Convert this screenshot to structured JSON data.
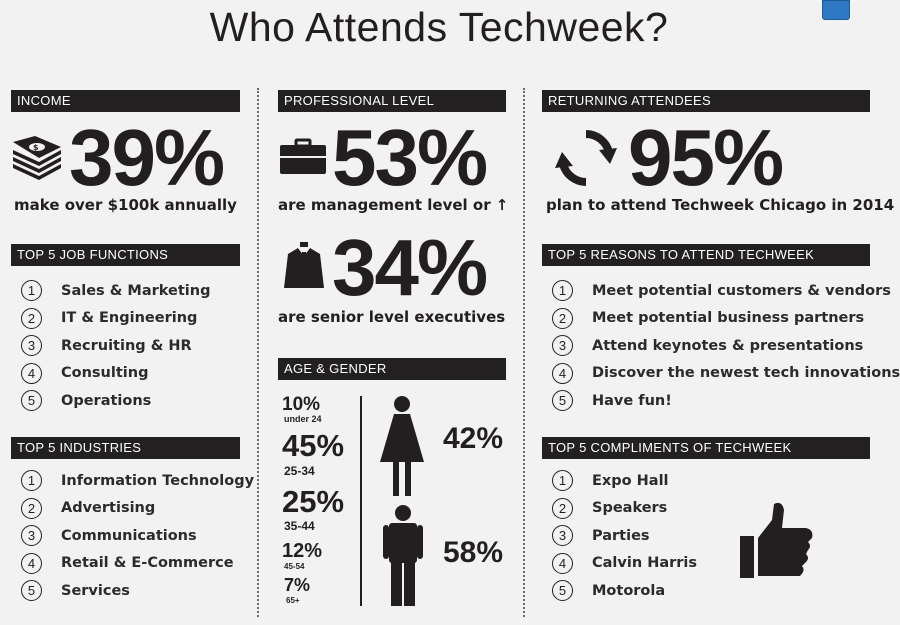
{
  "title": "Who Attends Techweek?",
  "income": {
    "header": "INCOME",
    "stat": "39%",
    "caption": "make over $100k annually"
  },
  "job_functions": {
    "header": "TOP 5 JOB FUNCTIONS",
    "items": [
      {
        "num": "1",
        "label": "Sales & Marketing"
      },
      {
        "num": "2",
        "label": "IT & Engineering"
      },
      {
        "num": "3",
        "label": "Recruiting & HR"
      },
      {
        "num": "4",
        "label": "Consulting"
      },
      {
        "num": "5",
        "label": "Operations"
      }
    ]
  },
  "industries": {
    "header": "TOP 5 INDUSTRIES",
    "items": [
      {
        "num": "1",
        "label": "Information Technology"
      },
      {
        "num": "2",
        "label": "Advertising"
      },
      {
        "num": "3",
        "label": "Communications"
      },
      {
        "num": "4",
        "label": "Retail & E-Commerce"
      },
      {
        "num": "5",
        "label": "Services"
      }
    ]
  },
  "professional": {
    "header": "PROFESSIONAL LEVEL",
    "stat1": "53%",
    "caption1": "are management level or ↑",
    "stat2": "34%",
    "caption2": "are senior level executives"
  },
  "age_gender": {
    "header": "AGE & GENDER",
    "ages": [
      {
        "pct": "10%",
        "range": "under 24"
      },
      {
        "pct": "45%",
        "range": "25-34"
      },
      {
        "pct": "25%",
        "range": "35-44"
      },
      {
        "pct": "12%",
        "range": "45-54"
      },
      {
        "pct": "7%",
        "range": "65+"
      }
    ],
    "female_pct": "42%",
    "male_pct": "58%"
  },
  "returning": {
    "header": "RETURNING ATTENDEES",
    "stat": "95%",
    "caption": "plan to attend Techweek Chicago in 2014"
  },
  "reasons": {
    "header": "TOP 5 REASONS TO ATTEND TECHWEEK",
    "items": [
      {
        "num": "1",
        "label": "Meet potential customers & vendors"
      },
      {
        "num": "2",
        "label": "Meet potential business partners"
      },
      {
        "num": "3",
        "label": "Attend keynotes & presentations"
      },
      {
        "num": "4",
        "label": "Discover the newest tech innovations"
      },
      {
        "num": "5",
        "label": "Have fun!"
      }
    ]
  },
  "compliments": {
    "header": "TOP 5 COMPLIMENTS OF TECHWEEK",
    "items": [
      {
        "num": "1",
        "label": "Expo Hall"
      },
      {
        "num": "2",
        "label": "Speakers"
      },
      {
        "num": "3",
        "label": "Parties"
      },
      {
        "num": "4",
        "label": "Calvin Harris"
      },
      {
        "num": "5",
        "label": "Motorola"
      }
    ]
  },
  "icons": {
    "money": "money-stack-icon",
    "briefcase": "briefcase-icon",
    "suit": "business-suit-icon",
    "refresh": "refresh-cycle-icon",
    "female": "female-figure-icon",
    "male": "male-figure-icon",
    "thumbs": "thumbs-up-icon"
  },
  "colors": {
    "background": "#f2f2f2",
    "header_bg": "#232021",
    "text": "#231f20"
  }
}
